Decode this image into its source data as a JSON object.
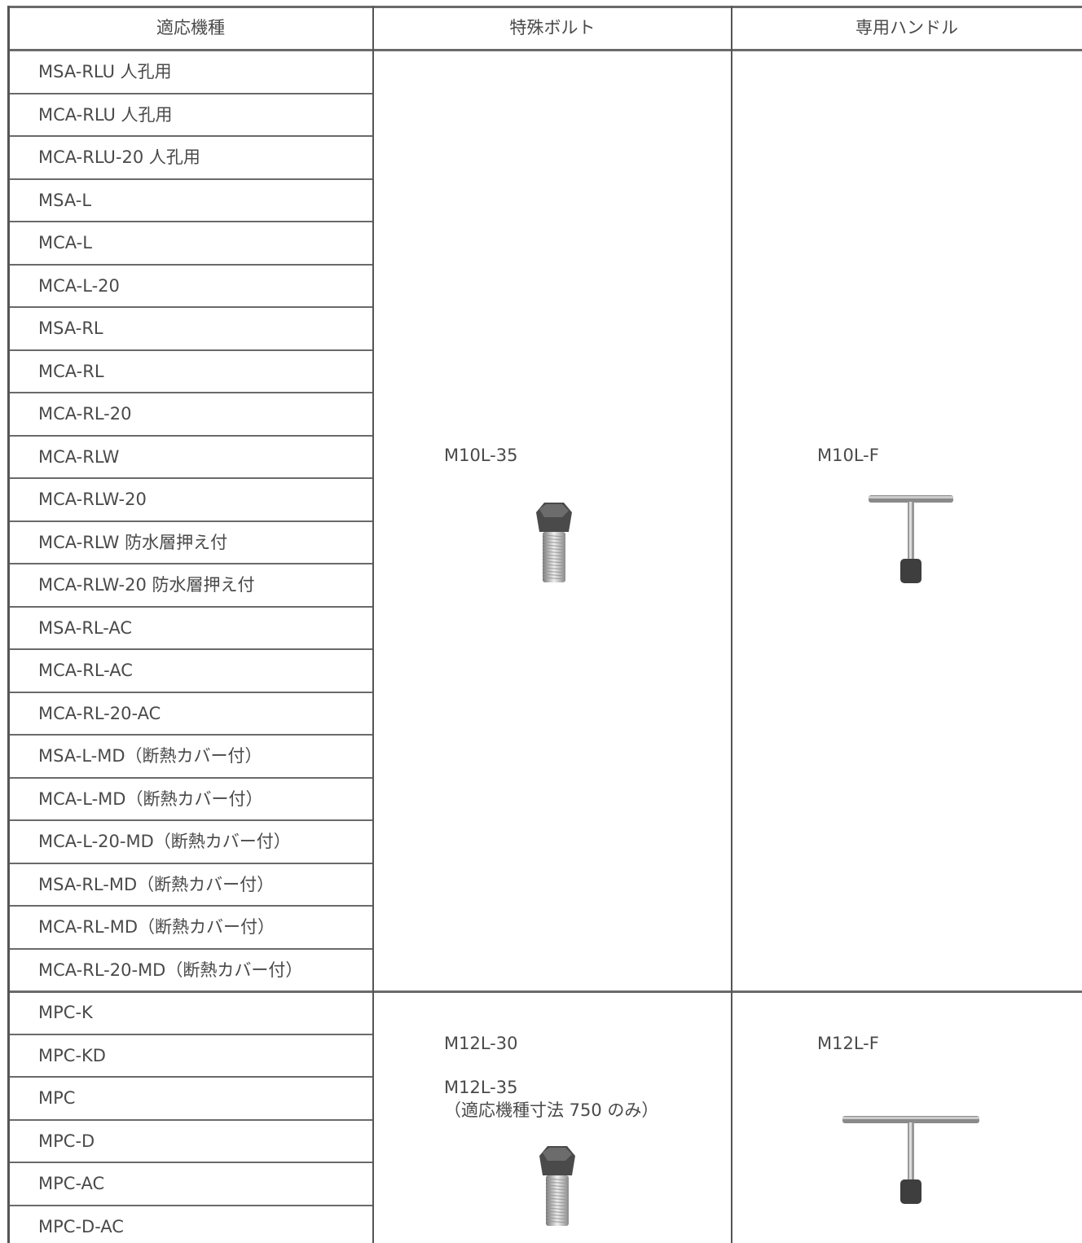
{
  "header": [
    "適応機種",
    "特殊ボルト",
    "専用ハンドル"
  ],
  "groups": [
    {
      "models": [
        "MSA-RLU 人孔用",
        "MCA-RLU 人孔用",
        "MCA-RLU-20 人孔用",
        "MSA-L",
        "MCA-L",
        "MCA-L-20",
        "MSA-RL",
        "MCA-RL",
        "MCA-RL-20",
        "MCA-RLW",
        "MCA-RLW-20",
        "MCA-RLW 防水層押え付",
        "MCA-RLW-20 防水層押え付",
        "MSA-RL-AC",
        "MCA-RL-AC",
        "MCA-RL-20-AC",
        "MSA-L-MD（断熱カバー付）",
        "MCA-L-MD（断熱カバー付）",
        "MCA-L-20-MD（断熱カバー付）",
        "MSA-RL-MD（断熱カバー付）",
        "MCA-RL-MD（断熱カバー付）",
        "MCA-RL-20-MD（断熱カバー付）"
      ],
      "bolt": [
        "M10L-35"
      ],
      "handle": "M10L-F"
    },
    {
      "models": [
        "MPC-K",
        "MPC-KD",
        "MPC",
        "MPC-D",
        "MPC-AC",
        "MPC-D-AC"
      ],
      "bolt": [
        "M12L-30",
        "M12L-35",
        "（適応機種寸法 750 のみ）"
      ],
      "handle": "M12L-F"
    }
  ]
}
